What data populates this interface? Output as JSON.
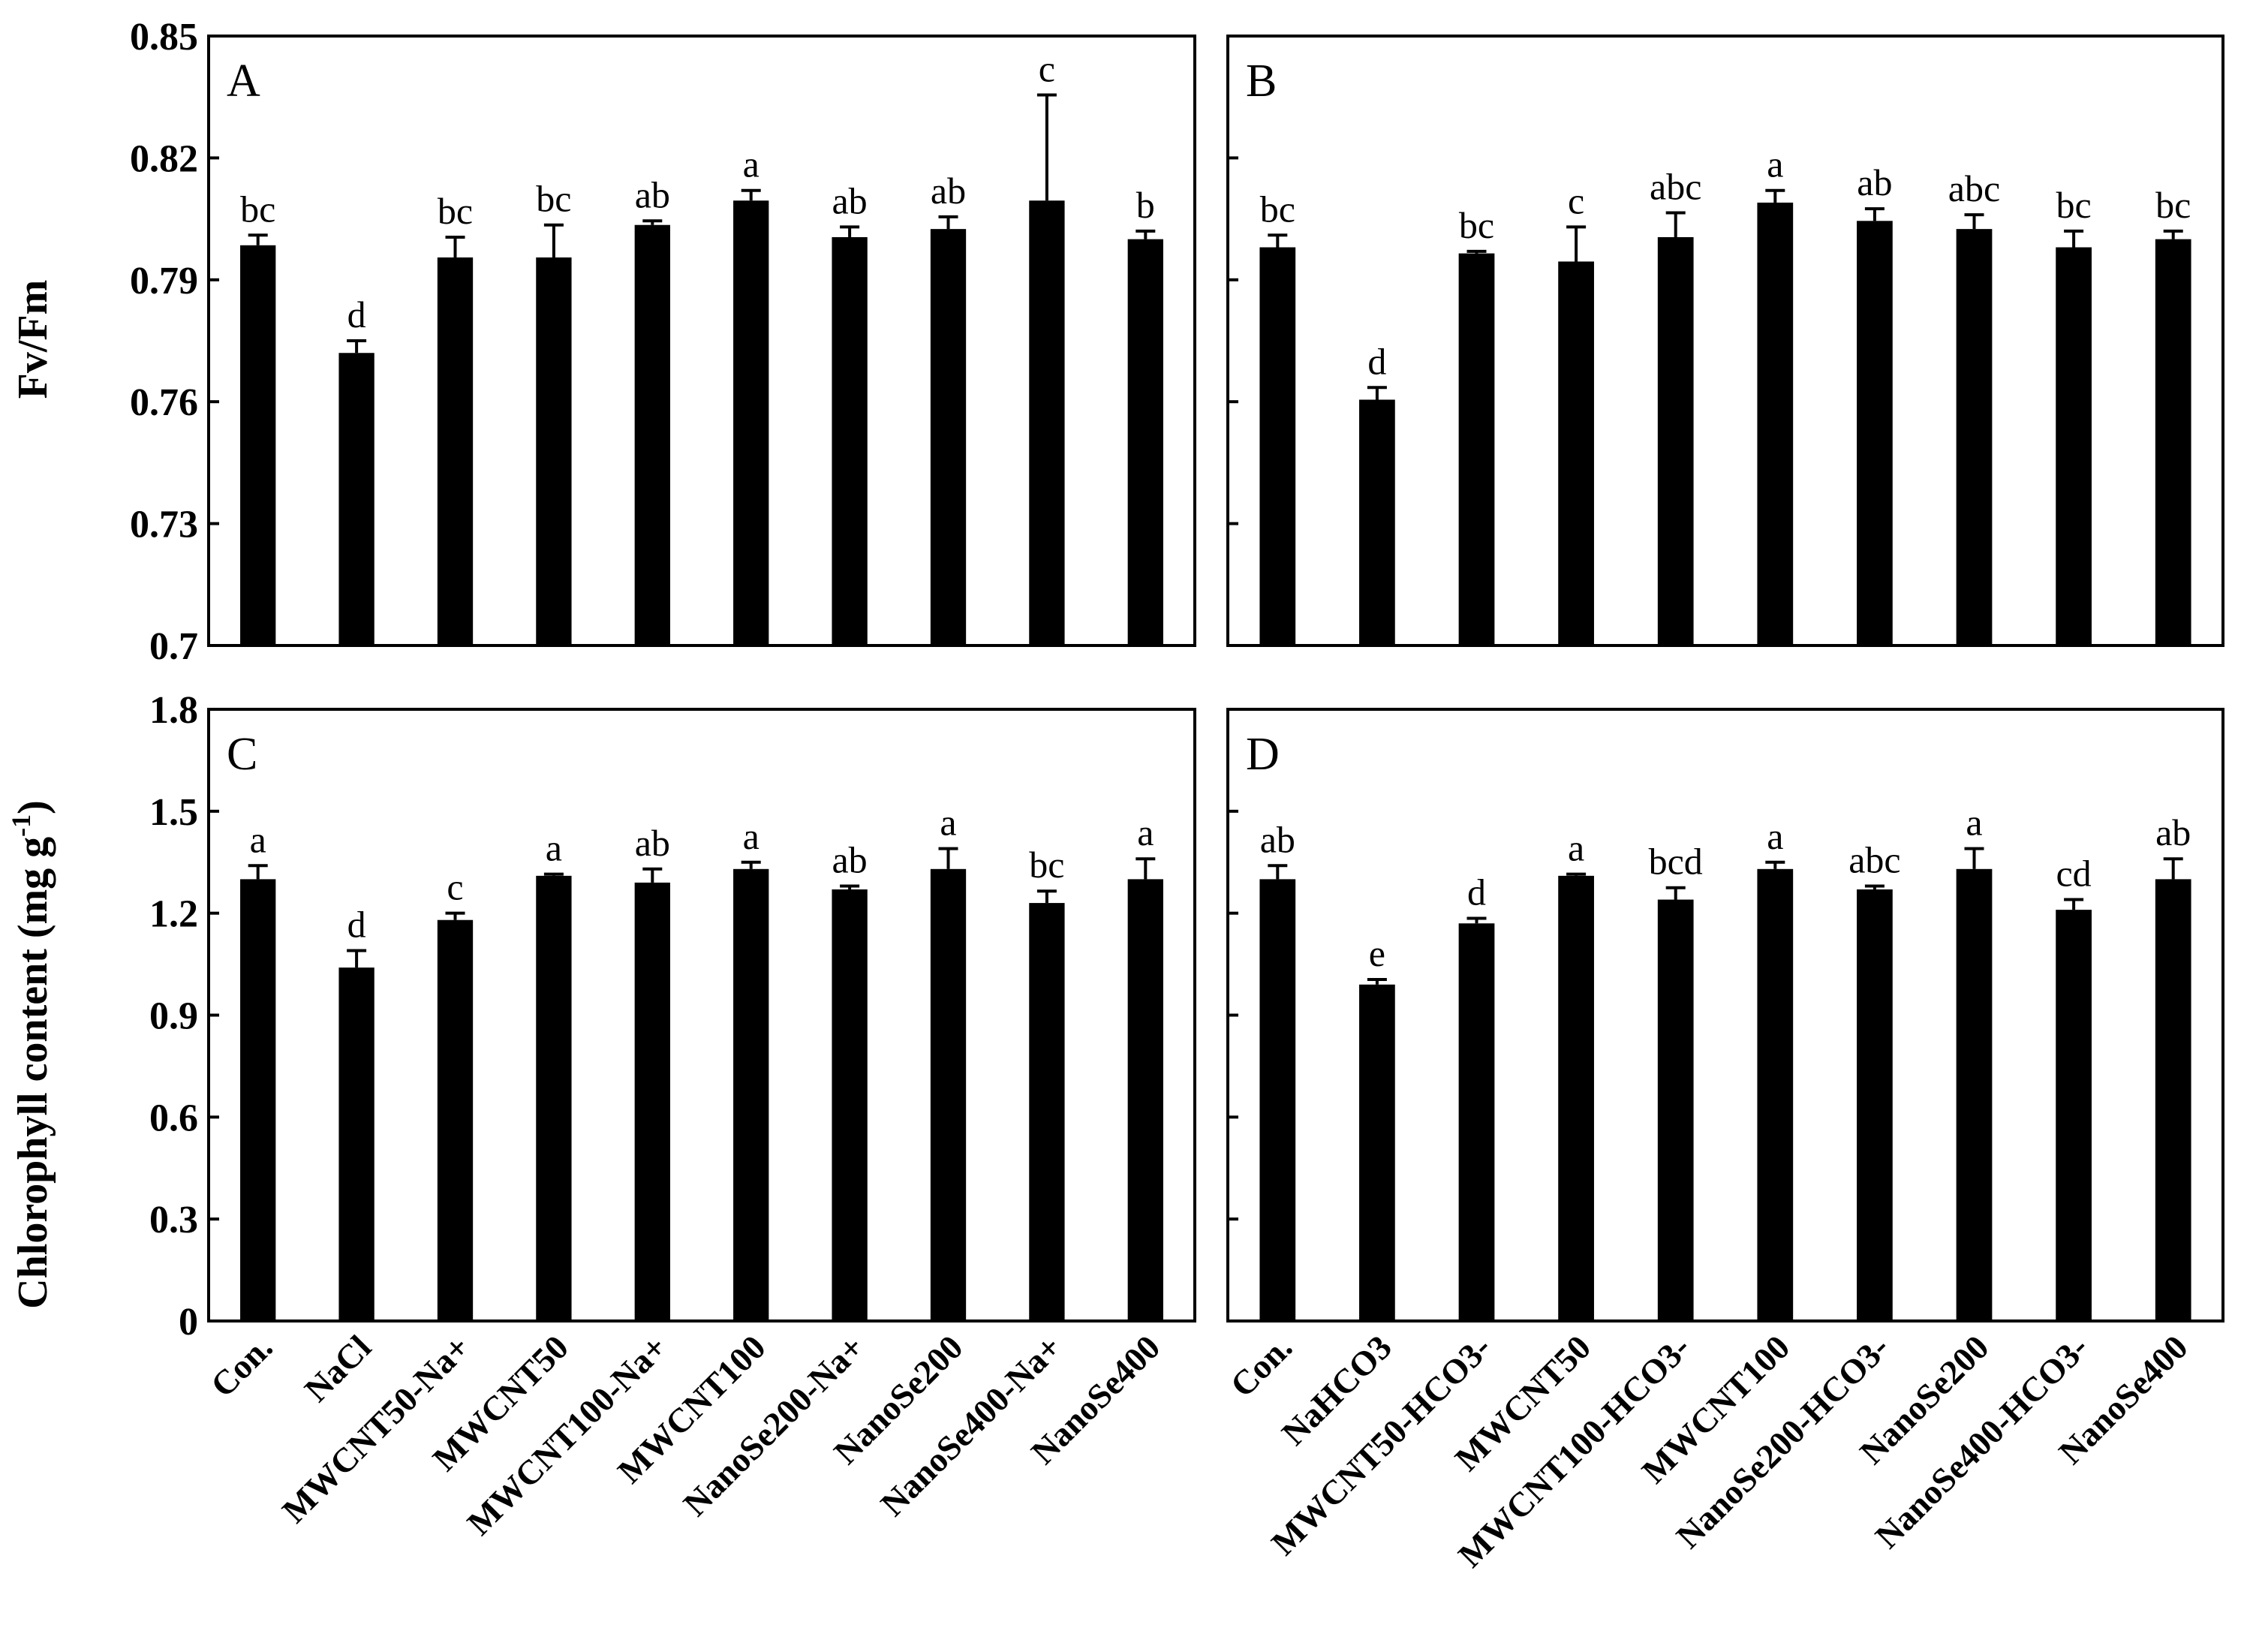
{
  "chart_data": [
    {
      "type": "bar",
      "panel": "A",
      "ylabel": "Fv/Fm",
      "ylim": [
        0.7,
        0.85
      ],
      "yticks": [
        "0.85",
        "0.82",
        "0.79",
        "0.76",
        "0.73",
        "0.7"
      ],
      "categories": [
        "Con.",
        "NaCl",
        "MWCNT50-Na+",
        "MWCNT50",
        "MWCNT100-Na+",
        "MWCNT100",
        "NanoSe200-Na+",
        "NanoSe200",
        "NanoSe400-Na+",
        "NanoSe400"
      ],
      "values": [
        0.7985,
        0.772,
        0.7955,
        0.7955,
        0.8035,
        0.8095,
        0.8005,
        0.8025,
        0.8095,
        0.8
      ],
      "errors": [
        0.0025,
        0.003,
        0.005,
        0.008,
        0.001,
        0.0025,
        0.0025,
        0.003,
        0.026,
        0.002
      ],
      "letters": [
        "bc",
        "d",
        "bc",
        "bc",
        "ab",
        "a",
        "ab",
        "ab",
        "c",
        "b"
      ]
    },
    {
      "type": "bar",
      "panel": "B",
      "ylabel": "",
      "ylim": [
        0.7,
        0.85
      ],
      "categories": [
        "Con.",
        "NaHCO3",
        "MWCNT50-HCO3-",
        "MWCNT50",
        "MWCNT100-HCO3-",
        "MWCNT100",
        "NanoSe200-HCO3-",
        "NanoSe200",
        "NanoSe400-HCO3-",
        "NanoSe400"
      ],
      "values": [
        0.798,
        0.7605,
        0.7965,
        0.7945,
        0.8005,
        0.809,
        0.8045,
        0.8025,
        0.798,
        0.8
      ],
      "errors": [
        0.003,
        0.003,
        0.0005,
        0.0085,
        0.006,
        0.003,
        0.003,
        0.0035,
        0.004,
        0.002
      ],
      "letters": [
        "bc",
        "d",
        "bc",
        "c",
        "abc",
        "a",
        "ab",
        "abc",
        "bc",
        "bc"
      ]
    },
    {
      "type": "bar",
      "panel": "C",
      "ylabel": "Chlorophyll  content (mg g",
      "ylabel_sup": "-1",
      "ylabel_end": ")",
      "ylim": [
        0,
        1.8
      ],
      "yticks": [
        "1.8",
        "1.5",
        "1.2",
        "0.9",
        "0.6",
        "0.3",
        "0"
      ],
      "categories": [
        "Con.",
        "NaCl",
        "MWCNT50-Na+",
        "MWCNT50",
        "MWCNT100-Na+",
        "MWCNT100",
        "NanoSe200-Na+",
        "NanoSe200",
        "NanoSe400-Na+",
        "NanoSe400"
      ],
      "values": [
        1.3,
        1.04,
        1.18,
        1.31,
        1.29,
        1.33,
        1.27,
        1.33,
        1.23,
        1.3
      ],
      "errors": [
        0.04,
        0.05,
        0.02,
        0.005,
        0.04,
        0.02,
        0.01,
        0.06,
        0.035,
        0.06
      ],
      "letters": [
        "a",
        "d",
        "c",
        "a",
        "ab",
        "a",
        "ab",
        "a",
        "bc",
        "a"
      ]
    },
    {
      "type": "bar",
      "panel": "D",
      "ylabel": "",
      "ylim": [
        0,
        1.8
      ],
      "categories": [
        "Con.",
        "NaHCO3",
        "MWCNT50-HCO3-",
        "MWCNT50",
        "MWCNT100-HCO3-",
        "MWCNT100",
        "NanoSe200-HCO3-",
        "NanoSe200",
        "NanoSe400-HCO3-",
        "NanoSe400"
      ],
      "values": [
        1.3,
        0.99,
        1.17,
        1.31,
        1.24,
        1.33,
        1.27,
        1.33,
        1.21,
        1.3
      ],
      "errors": [
        0.04,
        0.015,
        0.015,
        0.005,
        0.035,
        0.02,
        0.01,
        0.06,
        0.03,
        0.06
      ],
      "letters": [
        "ab",
        "e",
        "d",
        "a",
        "bcd",
        "a",
        "abc",
        "a",
        "cd",
        "ab"
      ]
    }
  ]
}
